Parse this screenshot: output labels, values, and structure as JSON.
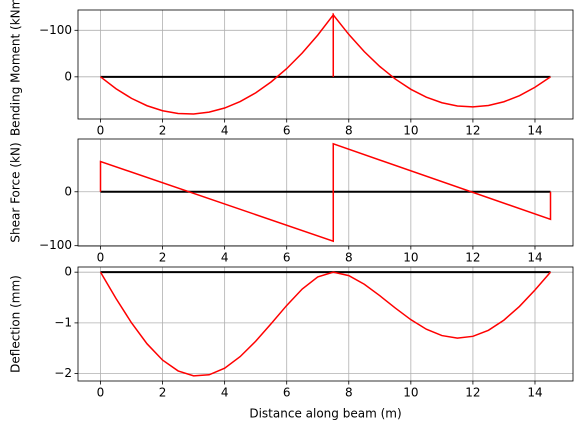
{
  "chart_data": [
    {
      "type": "line",
      "ylabel": "Bending Moment (kNm)",
      "xlim": [
        -0.725,
        15.225
      ],
      "ylim": [
        -143.6,
        90.6
      ],
      "inverted_y": true,
      "xticks": [
        0,
        2,
        4,
        6,
        8,
        10,
        12,
        14
      ],
      "yticks": [
        {
          "value": -100,
          "label": "−100"
        },
        0
      ],
      "grid": true,
      "series": [
        {
          "color": "#000000",
          "x": [
            0,
            14.5
          ],
          "values": [
            0,
            0
          ]
        },
        {
          "color": "#ff0000",
          "x": [
            0,
            0.5,
            1,
            1.5,
            2,
            2.5,
            3,
            3.5,
            4,
            4.5,
            5,
            5.5,
            6,
            6.5,
            7,
            7.5,
            7.5,
            7.5,
            8,
            8.5,
            9,
            9.5,
            10,
            10.5,
            11,
            11.5,
            12,
            12.5,
            13,
            13.5,
            14,
            14.5
          ],
          "values": [
            0,
            25.6,
            46.3,
            62.1,
            72.9,
            78.8,
            79.8,
            75.8,
            67.0,
            53.2,
            34.5,
            10.8,
            -17.7,
            -51.2,
            -89.6,
            -133.0,
            0,
            -133.0,
            -91.1,
            -54.1,
            -22.2,
            4.8,
            26.8,
            43.7,
            55.7,
            62.6,
            64.6,
            61.5,
            53.5,
            40.4,
            22.4,
            0
          ]
        }
      ]
    },
    {
      "type": "line",
      "ylabel": "Shear Force (kN)",
      "xlim": [
        -0.725,
        15.225
      ],
      "ylim": [
        -100.6,
        97.9
      ],
      "xticks": [
        0,
        2,
        4,
        6,
        8,
        10,
        12,
        14
      ],
      "yticks": [
        {
          "value": -100,
          "label": "−100"
        },
        0
      ],
      "grid": true,
      "series": [
        {
          "color": "#000000",
          "x": [
            0,
            14.5
          ],
          "values": [
            0,
            0
          ]
        },
        {
          "color": "#ff0000",
          "x": [
            0,
            0,
            7.5,
            7.5,
            14.5,
            14.5
          ],
          "values": [
            0,
            56.1,
            -91.6,
            88.9,
            -51.1,
            0
          ]
        }
      ]
    },
    {
      "type": "line",
      "ylabel": "Deflection (mm)",
      "xlabel": "Distance along beam (m)",
      "xlim": [
        -0.725,
        15.225
      ],
      "ylim": [
        -2.146,
        0.102
      ],
      "xticks": [
        0,
        2,
        4,
        6,
        8,
        10,
        12,
        14
      ],
      "yticks": [
        {
          "value": -2,
          "label": "−2"
        },
        {
          "value": -1,
          "label": "−1"
        },
        0
      ],
      "grid": true,
      "series": [
        {
          "color": "#000000",
          "x": [
            0,
            14.5
          ],
          "values": [
            0,
            0
          ]
        },
        {
          "color": "#ff0000",
          "x": [
            0,
            0.5,
            1,
            1.5,
            2,
            2.5,
            3,
            3.5,
            4,
            4.5,
            5,
            5.5,
            6,
            6.5,
            7,
            7.5,
            8,
            8.5,
            9,
            9.5,
            10,
            10.5,
            11,
            11.5,
            12,
            12.5,
            13,
            13.5,
            14,
            14.5
          ],
          "values": [
            0,
            -0.519,
            -1.0,
            -1.413,
            -1.734,
            -1.947,
            -2.044,
            -2.024,
            -1.893,
            -1.665,
            -1.363,
            -1.014,
            -0.656,
            -0.332,
            -0.094,
            0,
            -0.068,
            -0.238,
            -0.464,
            -0.708,
            -0.937,
            -1.125,
            -1.25,
            -1.3,
            -1.265,
            -1.146,
            -0.945,
            -0.675,
            -0.352,
            0
          ]
        }
      ]
    }
  ]
}
